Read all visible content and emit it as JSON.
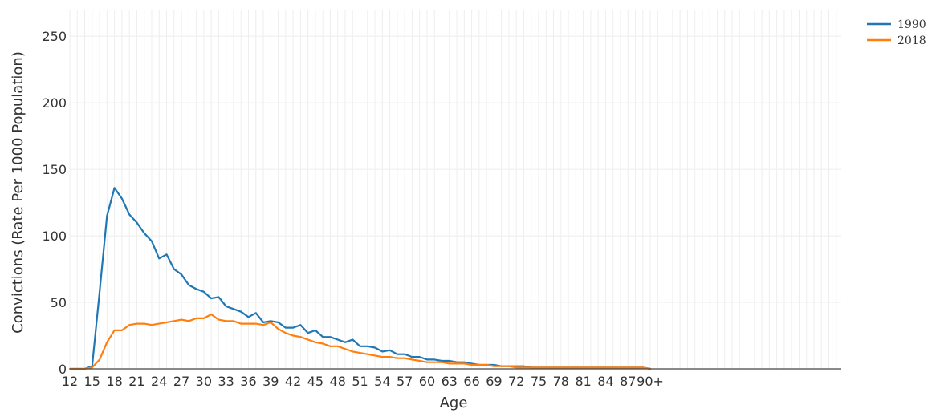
{
  "chart_data": {
    "type": "line",
    "xlabel": "Age",
    "ylabel": "Convictions (Rate Per 1000 Population)",
    "ylim": [
      0,
      270
    ],
    "grid": true,
    "legend_position": "top-right",
    "categories": [
      "12",
      "13",
      "14",
      "15",
      "16",
      "17",
      "18",
      "19",
      "20",
      "21",
      "22",
      "23",
      "24",
      "25",
      "26",
      "27",
      "28",
      "29",
      "30",
      "31",
      "32",
      "33",
      "34",
      "35",
      "36",
      "37",
      "38",
      "39",
      "40",
      "41",
      "42",
      "43",
      "44",
      "45",
      "46",
      "47",
      "48",
      "49",
      "50",
      "51",
      "52",
      "53",
      "54",
      "55",
      "56",
      "57",
      "58",
      "59",
      "60",
      "61",
      "62",
      "63",
      "64",
      "65",
      "66",
      "67",
      "68",
      "69",
      "70",
      "71",
      "72",
      "73",
      "74",
      "75",
      "76",
      "77",
      "78",
      "79",
      "80",
      "81",
      "82",
      "83",
      "84",
      "85",
      "86",
      "87",
      "88",
      "89",
      "90+"
    ],
    "x_tick_labels": [
      "12",
      "15",
      "18",
      "21",
      "24",
      "27",
      "30",
      "33",
      "36",
      "39",
      "42",
      "45",
      "48",
      "51",
      "54",
      "57",
      "60",
      "63",
      "66",
      "69",
      "72",
      "75",
      "78",
      "81",
      "84",
      "87",
      "90+"
    ],
    "y_ticks": [
      0,
      50,
      100,
      150,
      200,
      250
    ],
    "series": [
      {
        "name": "1990",
        "color": "#1f77b4",
        "values": [
          0,
          0,
          0,
          2,
          58,
          115,
          136,
          128,
          116,
          110,
          102,
          96,
          83,
          86,
          75,
          71,
          63,
          60,
          58,
          53,
          54,
          47,
          45,
          43,
          39,
          42,
          35,
          36,
          35,
          31,
          31,
          33,
          27,
          29,
          24,
          24,
          22,
          20,
          22,
          17,
          17,
          16,
          13,
          14,
          11,
          11,
          9,
          9,
          7,
          7,
          6,
          6,
          5,
          5,
          4,
          3,
          3,
          3,
          2,
          2,
          2,
          2,
          1,
          1,
          1,
          1,
          1,
          1,
          1,
          1,
          1,
          1,
          1,
          1,
          1,
          1,
          1,
          1,
          0
        ]
      },
      {
        "name": "2018",
        "color": "#ff7f0e",
        "values": [
          0,
          0,
          0,
          1,
          7,
          20,
          29,
          29,
          33,
          34,
          34,
          33,
          34,
          35,
          36,
          37,
          36,
          38,
          38,
          41,
          37,
          36,
          36,
          34,
          34,
          34,
          33,
          35,
          30,
          27,
          25,
          24,
          22,
          20,
          19,
          17,
          17,
          15,
          13,
          12,
          11,
          10,
          9,
          9,
          8,
          8,
          7,
          6,
          5,
          5,
          5,
          4,
          4,
          4,
          3,
          3,
          3,
          2,
          2,
          2,
          1,
          1,
          1,
          1,
          1,
          1,
          1,
          1,
          1,
          1,
          1,
          1,
          1,
          1,
          1,
          1,
          1,
          1,
          0
        ]
      }
    ]
  }
}
